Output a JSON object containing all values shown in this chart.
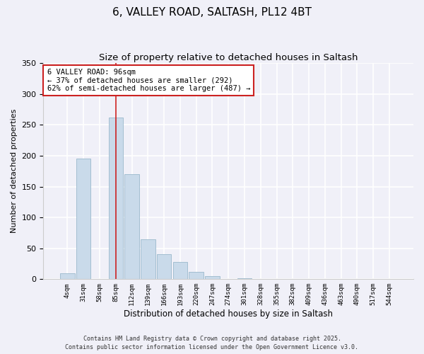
{
  "title": "6, VALLEY ROAD, SALTASH, PL12 4BT",
  "subtitle": "Size of property relative to detached houses in Saltash",
  "xlabel": "Distribution of detached houses by size in Saltash",
  "ylabel": "Number of detached properties",
  "bar_labels": [
    "4sqm",
    "31sqm",
    "58sqm",
    "85sqm",
    "112sqm",
    "139sqm",
    "166sqm",
    "193sqm",
    "220sqm",
    "247sqm",
    "274sqm",
    "301sqm",
    "328sqm",
    "355sqm",
    "382sqm",
    "409sqm",
    "436sqm",
    "463sqm",
    "490sqm",
    "517sqm",
    "544sqm"
  ],
  "bar_values": [
    10,
    195,
    0,
    262,
    170,
    65,
    40,
    28,
    12,
    5,
    0,
    2,
    0,
    0,
    0,
    0,
    0,
    0,
    0,
    0,
    0
  ],
  "bar_color": "#c9daea",
  "bar_edge_color": "#9ab8cc",
  "vline_x_index": 3,
  "vline_color": "#cc2222",
  "ylim": [
    0,
    350
  ],
  "yticks": [
    0,
    50,
    100,
    150,
    200,
    250,
    300,
    350
  ],
  "annotation_title": "6 VALLEY ROAD: 96sqm",
  "annotation_line1": "← 37% of detached houses are smaller (292)",
  "annotation_line2": "62% of semi-detached houses are larger (487) →",
  "footer_line1": "Contains HM Land Registry data © Crown copyright and database right 2025.",
  "footer_line2": "Contains public sector information licensed under the Open Government Licence v3.0.",
  "bg_color": "#f0f0f8",
  "title_fontsize": 11,
  "subtitle_fontsize": 9.5
}
